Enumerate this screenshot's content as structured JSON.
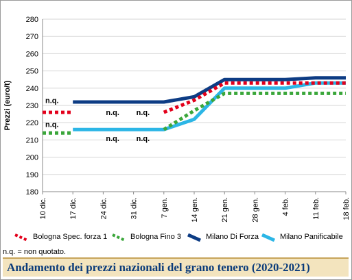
{
  "chart_data": {
    "type": "line",
    "title": "Andamento dei prezzi nazionali del grano tenero (2020-2021)",
    "ylabel": "Prezzi (euro/t)",
    "xlabel": "",
    "ylim": [
      180,
      280
    ],
    "yticks": [
      180,
      190,
      200,
      210,
      220,
      230,
      240,
      250,
      260,
      270,
      280
    ],
    "categories": [
      "10 dic.",
      "17 dic.",
      "24 dic.",
      "31 dic.",
      "7 gen.",
      "14 gen.",
      "21 gen.",
      "28 gen.",
      "4 feb.",
      "11 feb.",
      "18 feb."
    ],
    "grid": "horizontal",
    "legend_position": "bottom",
    "series": [
      {
        "name": "Bologna Spec. forza 1",
        "color": "#e3001b",
        "style": "dotted",
        "values": [
          226,
          226,
          null,
          null,
          226,
          233,
          243,
          243,
          243,
          243,
          243
        ]
      },
      {
        "name": "Bologna Fino 3",
        "color": "#3aa63a",
        "style": "dotted",
        "values": [
          214,
          214,
          null,
          null,
          216,
          227,
          237,
          237,
          237,
          237,
          237
        ]
      },
      {
        "name": "Milano Di Forza",
        "color": "#0d3c84",
        "style": "solid",
        "values": [
          null,
          232,
          232,
          232,
          232,
          235,
          245,
          245,
          245,
          246,
          246
        ]
      },
      {
        "name": "Milano Panificabile",
        "color": "#2cb6e6",
        "style": "solid",
        "values": [
          null,
          216,
          216,
          216,
          216,
          222,
          240,
          240,
          240,
          243,
          243
        ]
      }
    ],
    "annotations": [
      {
        "text": "n.q.",
        "x": "10 dic.",
        "y": 233
      },
      {
        "text": "n.q.",
        "x": "24 dic.",
        "y": 226
      },
      {
        "text": "n.q.",
        "x": "31 dic.",
        "y": 226
      },
      {
        "text": "n.q.",
        "x": "10 dic.",
        "y": 219
      },
      {
        "text": "n.q.",
        "x": "24 dic.",
        "y": 211
      },
      {
        "text": "n.q.",
        "x": "31 dic.",
        "y": 211
      }
    ]
  },
  "note": "n.q. = non quotato."
}
